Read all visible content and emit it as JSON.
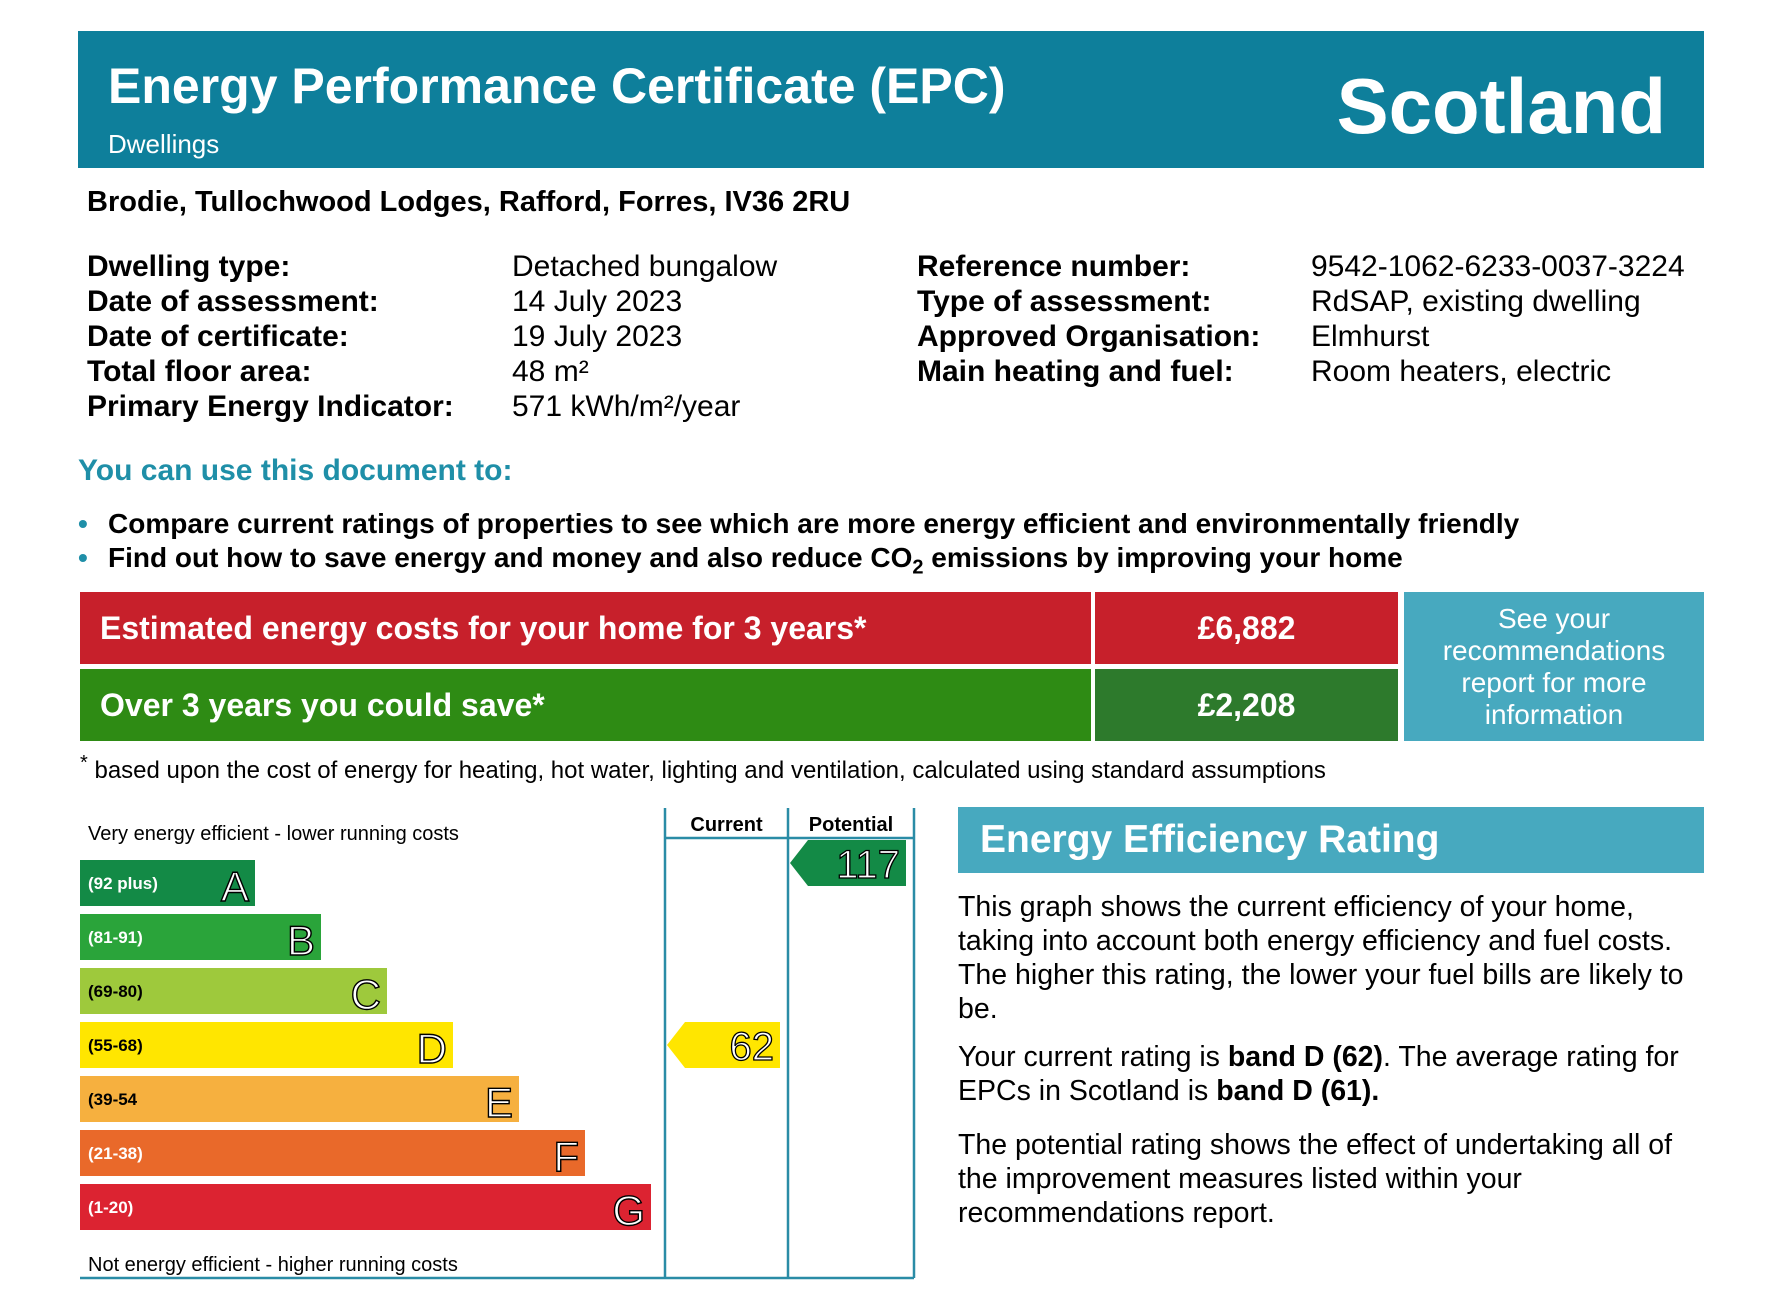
{
  "header": {
    "title": "Energy Performance Certificate (EPC)",
    "subtitle": "Dwellings",
    "country": "Scotland",
    "color": "#0e7f9b"
  },
  "address": "Brodie,  Tullochwood Lodges, Rafford, Forres, IV36 2RU",
  "details_left": [
    {
      "label": "Dwelling type:",
      "value": "Detached bungalow"
    },
    {
      "label": "Date of assessment:",
      "value": "14 July 2023"
    },
    {
      "label": "Date of certificate:",
      "value": "19 July 2023"
    },
    {
      "label": "Total floor area:",
      "value": "48 m²"
    },
    {
      "label": "Primary Energy Indicator:",
      "value": "571 kWh/m²/year"
    }
  ],
  "details_right": [
    {
      "label": "Reference number:",
      "value": "9542-1062-6233-0037-3224"
    },
    {
      "label": "Type of assessment:",
      "value": "RdSAP, existing dwelling"
    },
    {
      "label": "Approved Organisation:",
      "value": "Elmhurst"
    },
    {
      "label": "Main heating and fuel:",
      "value": "Room heaters, electric"
    }
  ],
  "use": {
    "heading": "You can use this document to:",
    "bullet1": "Compare current ratings of properties to see which are more energy efficient and environmentally friendly",
    "bullet2_pre": "Find out how to save energy and money and also reduce CO",
    "bullet2_sub": "2",
    "bullet2_post": " emissions by improving your home"
  },
  "costs": {
    "estimated_label": "Estimated energy costs for your home for 3 years*",
    "estimated_value": "£6,882",
    "save_label": "Over 3 years you could save*",
    "save_value": "£2,208",
    "see_report": "See your recommendations report for more information"
  },
  "footnote_mark": "*",
  "footnote": " based upon the cost of energy for heating, hot water, lighting and ventilation, calculated using standard assumptions",
  "chart_data": {
    "type": "bar",
    "top_label": "Very energy efficient - lower running costs",
    "bottom_label": "Not energy efficient - higher running costs",
    "column_current": "Current",
    "column_potential": "Potential",
    "bands": [
      {
        "letter": "A",
        "range": "(92 plus)",
        "color": "#138a46"
      },
      {
        "letter": "B",
        "range": "(81-91)",
        "color": "#2aa43a"
      },
      {
        "letter": "C",
        "range": "(69-80)",
        "color": "#9ec93c"
      },
      {
        "letter": "D",
        "range": "(55-68)",
        "color": "#ffe600"
      },
      {
        "letter": "E",
        "range": "(39-54",
        "color": "#f6b03f"
      },
      {
        "letter": "F",
        "range": "(21-38)",
        "color": "#e9692a"
      },
      {
        "letter": "G",
        "range": "(1-20)",
        "color": "#dc2331"
      }
    ],
    "current": {
      "value": 62,
      "band": "D",
      "color": "#ffe600"
    },
    "potential": {
      "value": 117,
      "band": "A",
      "color": "#138a46"
    }
  },
  "efficiency": {
    "heading": "Energy Efficiency Rating",
    "p1": "This graph shows the current efficiency of your home, taking into account both energy efficiency and fuel costs. The higher this rating, the lower your fuel bills are likely to be.",
    "p2_a": "Your current rating is ",
    "p2_b": "band D (62)",
    "p2_c": ". The average rating for EPCs in Scotland is ",
    "p2_d": "band D (61).",
    "p3": "The potential rating shows the effect of undertaking all of the improvement measures listed within your recommendations report."
  }
}
